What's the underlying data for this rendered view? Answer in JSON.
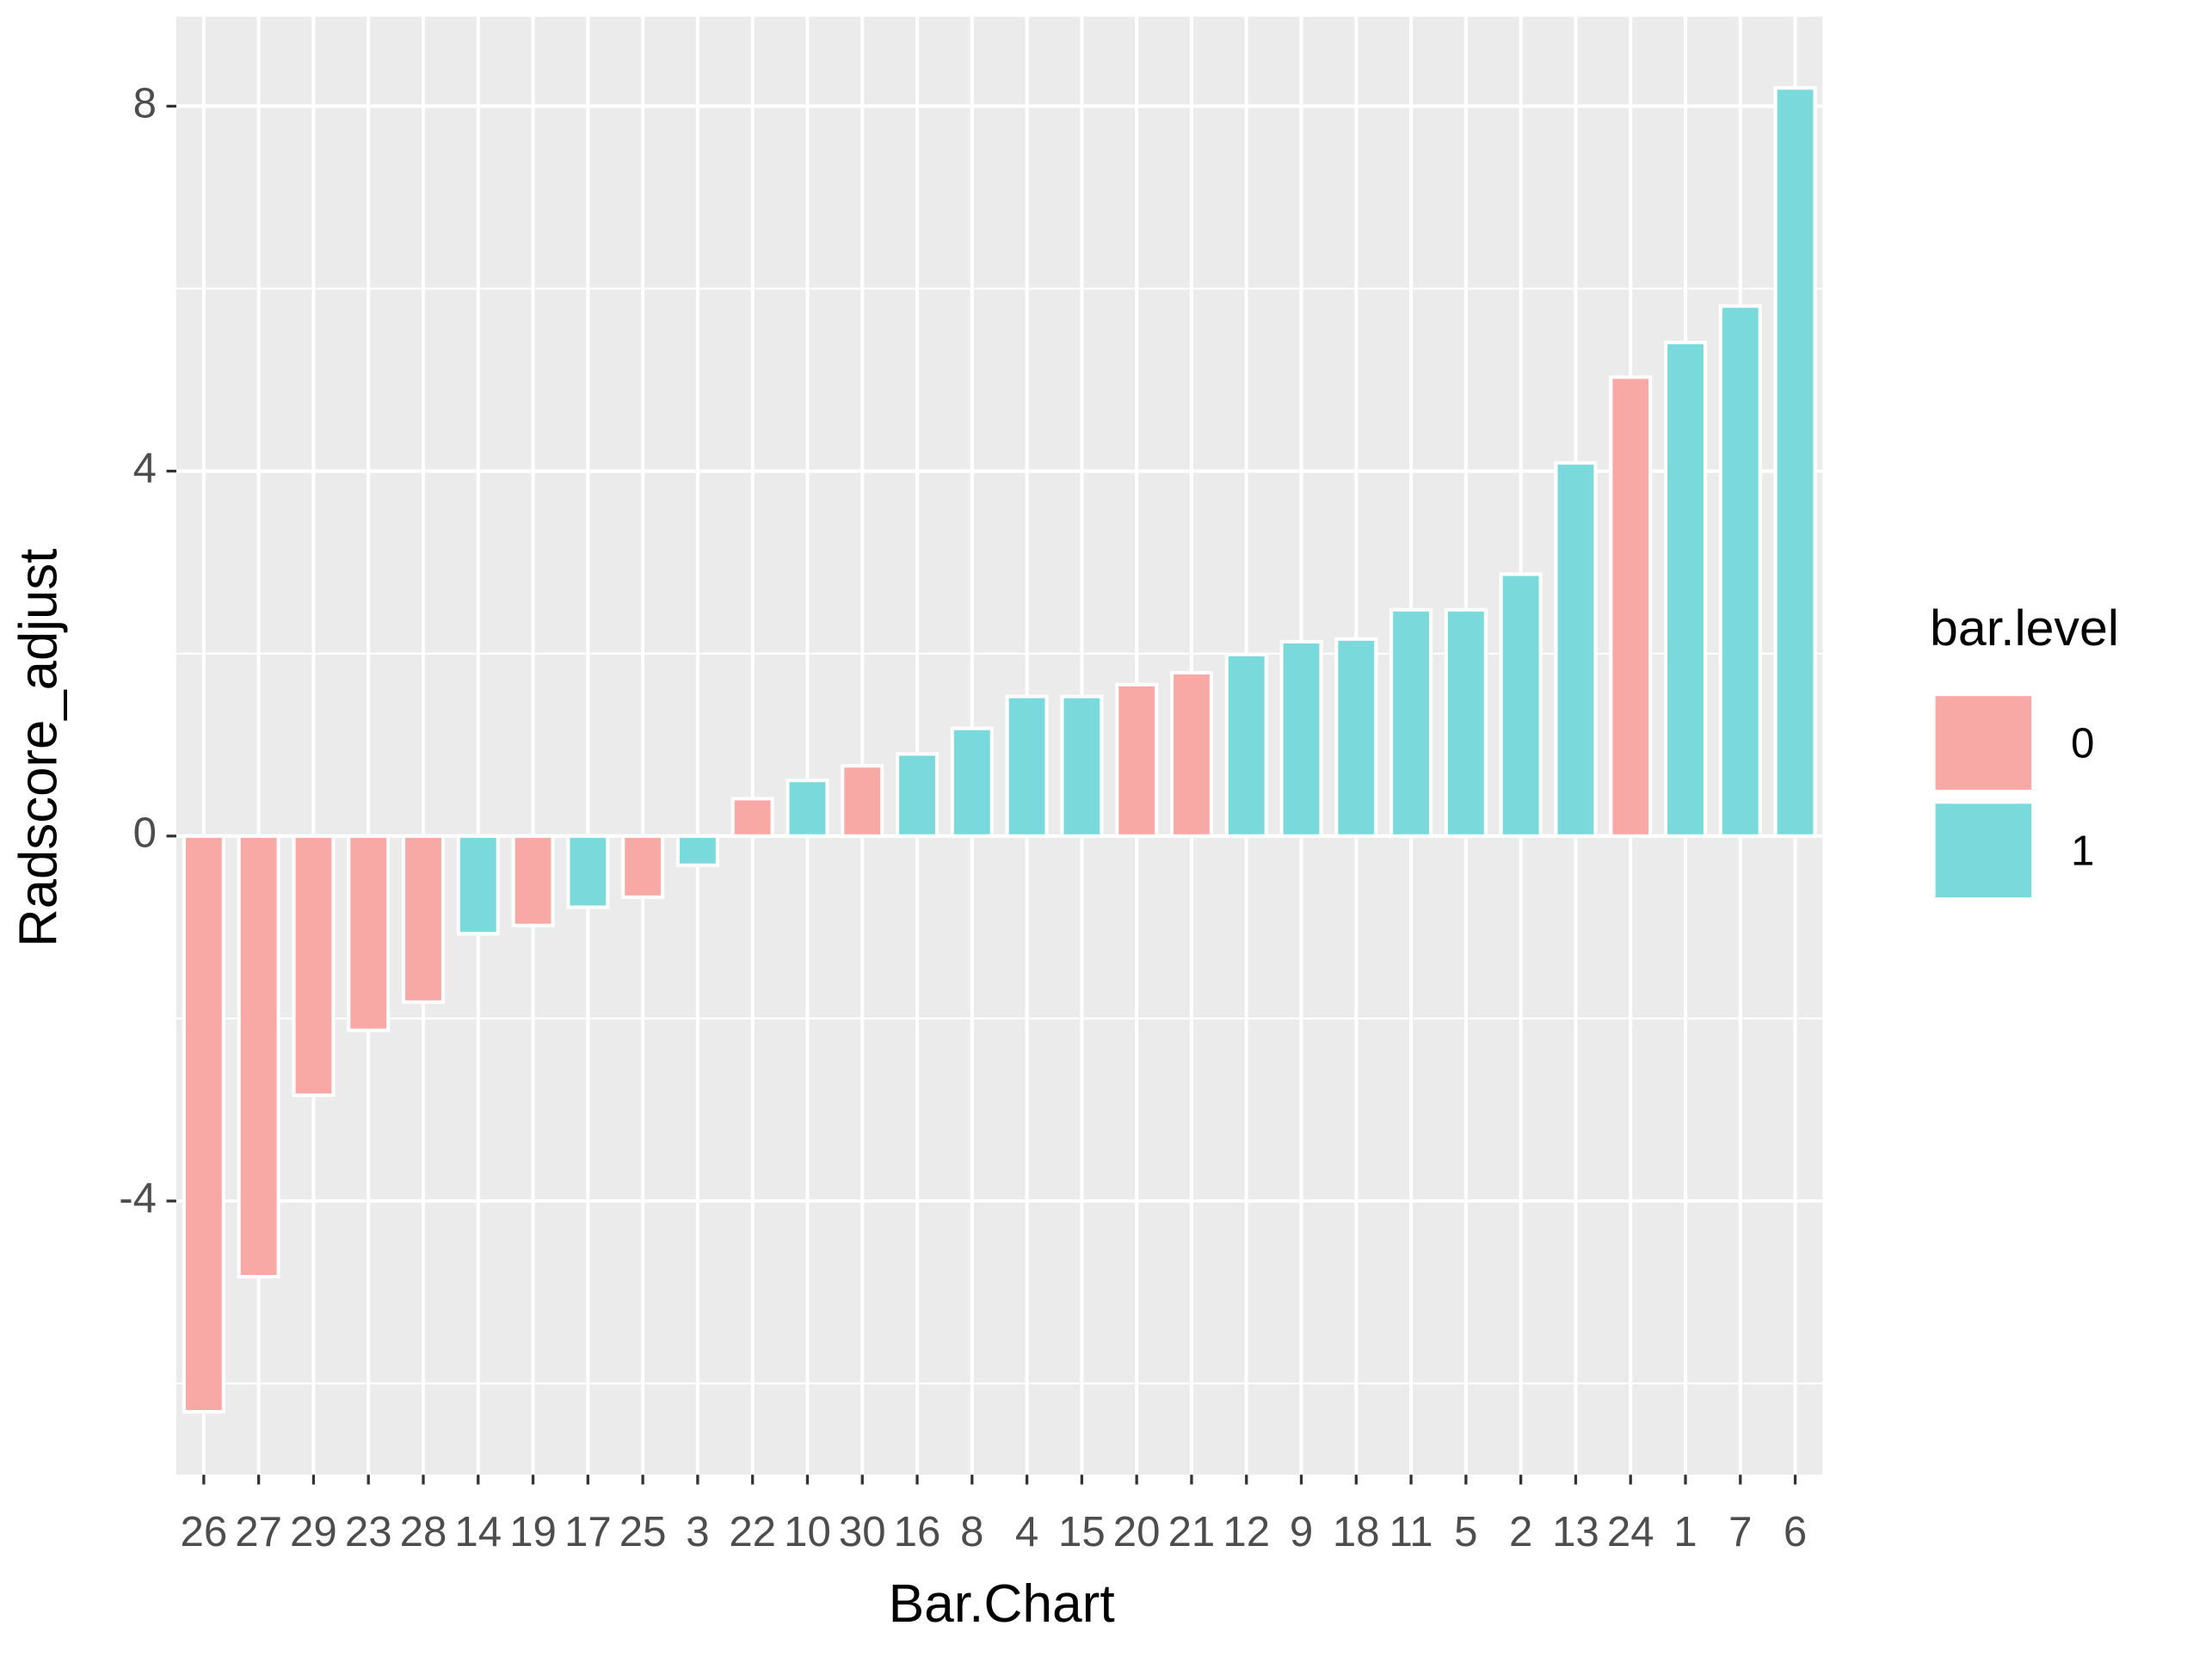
{
  "chart_data": {
    "type": "bar",
    "x_label": "Bar.Chart",
    "y_label": "Radscore_adjust",
    "categories": [
      "26",
      "27",
      "29",
      "23",
      "28",
      "14",
      "19",
      "17",
      "25",
      "3",
      "22",
      "10",
      "30",
      "16",
      "8",
      "4",
      "15",
      "20",
      "21",
      "12",
      "9",
      "18",
      "11",
      "5",
      "2",
      "13",
      "24",
      "1",
      "7",
      "6"
    ],
    "values": [
      -6.31,
      -4.83,
      -2.84,
      -2.13,
      -1.82,
      -1.07,
      -0.98,
      -0.78,
      -0.67,
      -0.32,
      0.41,
      0.61,
      0.77,
      0.9,
      1.18,
      1.53,
      1.53,
      1.66,
      1.79,
      1.99,
      2.13,
      2.16,
      2.48,
      2.48,
      2.87,
      4.09,
      5.03,
      5.41,
      5.81,
      8.2
    ],
    "levels": [
      0,
      0,
      0,
      0,
      0,
      1,
      0,
      1,
      0,
      1,
      0,
      1,
      0,
      1,
      1,
      1,
      1,
      0,
      0,
      1,
      1,
      1,
      1,
      1,
      1,
      1,
      0,
      1,
      1,
      1
    ],
    "legend": {
      "title": "bar.level",
      "entries": [
        {
          "name": "0",
          "color": "#f8a9a6"
        },
        {
          "name": "1",
          "color": "#7adadb"
        }
      ]
    },
    "ylim": [
      -7.0,
      8.98
    ],
    "yticks": [
      -4,
      0,
      4,
      8
    ],
    "minor_yticks": [
      -6,
      -2,
      2,
      6
    ],
    "grid": true
  }
}
